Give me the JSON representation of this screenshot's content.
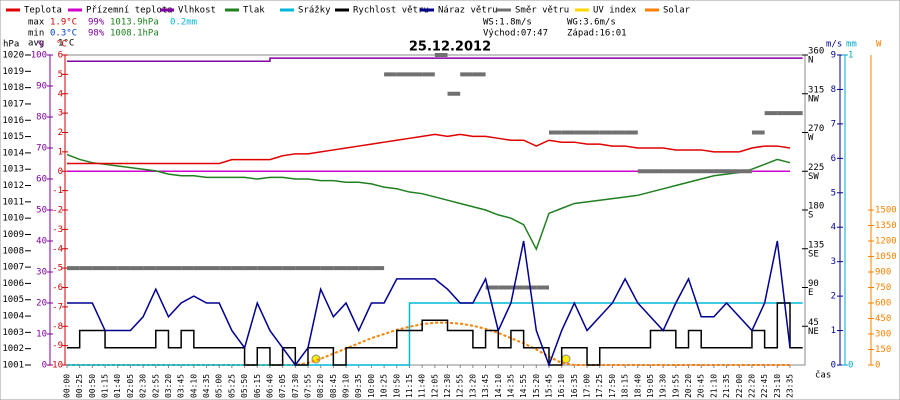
{
  "chart_data": {
    "type": "line",
    "title": "25.12.2012",
    "x_label": "čas",
    "stats": {
      "max_label": "max",
      "max_temp": "1.9°C",
      "max_hum": "99%",
      "max_press": "1013.9hPa",
      "rain": "0.2mm",
      "min_label": "min",
      "min_temp": "0.3°C",
      "min_hum": "98%",
      "min_press": "1008.1hPa",
      "avg_label": "avg",
      "avg_temp": "1°C",
      "ws": "WS:1.8m/s",
      "wg": "WG:3.6m/s",
      "sunrise": "Východ:07:47",
      "sunset": "Západ:16:01"
    },
    "categories": [
      "00:00",
      "00:25",
      "00:50",
      "01:15",
      "01:40",
      "02:05",
      "02:30",
      "02:55",
      "03:20",
      "03:45",
      "04:10",
      "04:35",
      "05:00",
      "05:25",
      "05:50",
      "06:15",
      "06:40",
      "07:05",
      "07:30",
      "07:55",
      "08:20",
      "08:45",
      "09:10",
      "09:35",
      "10:00",
      "10:25",
      "10:50",
      "11:15",
      "11:40",
      "12:05",
      "12:30",
      "12:55",
      "13:20",
      "13:45",
      "14:10",
      "14:35",
      "14:55",
      "15:20",
      "15:45",
      "16:10",
      "16:35",
      "17:00",
      "17:25",
      "17:50",
      "18:15",
      "18:40",
      "19:05",
      "19:30",
      "19:55",
      "20:20",
      "20:45",
      "21:10",
      "21:35",
      "22:00",
      "22:20",
      "22:45",
      "23:10",
      "23:35"
    ],
    "axes": {
      "pressure": {
        "label": "hPa",
        "color": "#000000",
        "ylim": [
          1001,
          1020
        ],
        "yticks": [
          1001,
          1002,
          1003,
          1004,
          1005,
          1006,
          1007,
          1008,
          1009,
          1010,
          1011,
          1012,
          1013,
          1014,
          1015,
          1016,
          1017,
          1018,
          1019,
          1020
        ]
      },
      "humidity": {
        "label": "%",
        "color": "#8000a0",
        "ylim": [
          0,
          100
        ],
        "yticks": [
          0,
          10,
          20,
          30,
          40,
          50,
          60,
          70,
          80,
          90,
          100
        ]
      },
      "temperature": {
        "label": "°C",
        "color": "#d00000",
        "ylim": [
          -10,
          6
        ],
        "yticks": [
          -10,
          -9,
          -8,
          -7,
          -6,
          -5,
          -4,
          -3,
          -2,
          -1,
          0,
          1,
          2,
          3,
          4,
          5,
          6
        ]
      },
      "direction": {
        "color": "#000000",
        "ylim": [
          0,
          360
        ],
        "yticks": [
          45,
          90,
          135,
          180,
          225,
          270,
          315,
          360
        ],
        "compass": [
          "NE",
          "E",
          "SE",
          "S",
          "SW",
          "W",
          "NW",
          "N"
        ]
      },
      "wind": {
        "label": "m/s",
        "color": "#000090",
        "ylim": [
          0,
          9
        ],
        "yticks": [
          0,
          1,
          2,
          3,
          4,
          5,
          6,
          7,
          8,
          9
        ]
      },
      "precip": {
        "label": "mm",
        "color": "#00a8c8",
        "ylim": [
          0,
          1
        ],
        "yticks": [
          0,
          1
        ]
      },
      "solar": {
        "label": "W",
        "color": "#ff8000",
        "ylim": [
          0,
          3000
        ],
        "yticks": [
          0,
          150,
          300,
          450,
          600,
          750,
          900,
          1050,
          1200,
          1350,
          1500
        ]
      }
    },
    "grid": false,
    "series": [
      {
        "name": "Teplota",
        "color": "#e00000",
        "axis": "temperature",
        "style": "line",
        "values": [
          0.4,
          0.4,
          0.4,
          0.4,
          0.4,
          0.4,
          0.4,
          0.4,
          0.4,
          0.4,
          0.4,
          0.4,
          0.4,
          0.6,
          0.6,
          0.6,
          0.6,
          0.8,
          0.9,
          0.9,
          1.0,
          1.1,
          1.2,
          1.3,
          1.4,
          1.5,
          1.6,
          1.7,
          1.8,
          1.9,
          1.8,
          1.9,
          1.8,
          1.8,
          1.7,
          1.6,
          1.6,
          1.3,
          1.6,
          1.5,
          1.5,
          1.4,
          1.4,
          1.3,
          1.3,
          1.2,
          1.2,
          1.2,
          1.1,
          1.1,
          1.1,
          1.0,
          1.0,
          1.0,
          1.2,
          1.3,
          1.3,
          1.2
        ]
      },
      {
        "name": "Přízemní teplota",
        "color": "#d000d0",
        "axis": "temperature",
        "style": "line",
        "values": [
          0,
          0,
          0,
          0,
          0,
          0,
          0,
          0,
          0,
          0,
          0,
          0,
          0,
          0,
          0,
          0,
          0,
          0,
          0,
          0,
          0,
          0,
          0,
          0,
          0,
          0,
          0,
          0,
          0,
          0,
          0,
          0,
          0,
          0,
          0,
          0,
          0,
          0,
          0,
          0,
          0,
          0,
          0,
          0,
          0,
          0,
          0,
          0,
          0,
          0,
          0,
          0,
          0,
          0,
          0,
          0,
          0,
          0
        ]
      },
      {
        "name": "Vlhkost",
        "color": "#8000a0",
        "axis": "humidity",
        "style": "step",
        "values": [
          98,
          98,
          98,
          98,
          98,
          98,
          98,
          98,
          98,
          98,
          98,
          98,
          98,
          98,
          98,
          98,
          99,
          99,
          99,
          99,
          99,
          99,
          99,
          99,
          99,
          99,
          99,
          99,
          99,
          99,
          99,
          99,
          99,
          99,
          99,
          99,
          99,
          99,
          99,
          99,
          99,
          99,
          99,
          99,
          99,
          99,
          99,
          99,
          99,
          99,
          99,
          99,
          99,
          99,
          99,
          99,
          99,
          99
        ]
      },
      {
        "name": "Tlak",
        "color": "#208020",
        "axis": "pressure",
        "style": "line",
        "values": [
          1013.9,
          1013.6,
          1013.4,
          1013.3,
          1013.2,
          1013.1,
          1013.0,
          1012.9,
          1012.7,
          1012.6,
          1012.6,
          1012.5,
          1012.5,
          1012.5,
          1012.5,
          1012.4,
          1012.5,
          1012.5,
          1012.4,
          1012.4,
          1012.3,
          1012.3,
          1012.2,
          1012.2,
          1012.1,
          1011.9,
          1011.8,
          1011.6,
          1011.5,
          1011.3,
          1011.1,
          1010.9,
          1010.7,
          1010.5,
          1010.2,
          1010.0,
          1009.6,
          1008.1,
          1010.3,
          1010.6,
          1010.9,
          1011.0,
          1011.1,
          1011.2,
          1011.3,
          1011.4,
          1011.6,
          1011.8,
          1012.0,
          1012.2,
          1012.4,
          1012.6,
          1012.7,
          1012.8,
          1013.0,
          1013.3,
          1013.6,
          1013.4
        ]
      },
      {
        "name": "Srážky",
        "color": "#00b8d8",
        "axis": "precip",
        "style": "step",
        "values": [
          0,
          0,
          0,
          0,
          0,
          0,
          0,
          0,
          0,
          0,
          0,
          0,
          0,
          0,
          0,
          0,
          0,
          0,
          0,
          0,
          0,
          0,
          0,
          0,
          0,
          0,
          0,
          0.2,
          0.2,
          0.2,
          0.2,
          0.2,
          0.2,
          0.2,
          0.2,
          0.2,
          0.2,
          0.2,
          0.2,
          0.2,
          0.2,
          0.2,
          0.2,
          0.2,
          0.2,
          0.2,
          0.2,
          0.2,
          0.2,
          0.2,
          0.2,
          0.2,
          0.2,
          0.2,
          0.2,
          0.2,
          0.2,
          0.2
        ]
      },
      {
        "name": "Rychlost větru",
        "color": "#000000",
        "axis": "wind",
        "style": "step",
        "values": [
          0.5,
          1,
          1,
          0.5,
          0.5,
          0.5,
          0.5,
          1,
          0.5,
          1,
          0.5,
          0.5,
          0.5,
          0.5,
          0,
          0.5,
          0,
          0.5,
          0,
          0.5,
          0.5,
          0,
          0.5,
          0.5,
          0.5,
          0.5,
          1,
          1,
          1.3,
          1.3,
          1,
          1,
          0.5,
          1,
          0.5,
          1,
          0.5,
          0.5,
          0,
          0.5,
          0.5,
          0,
          0.5,
          0.5,
          0.5,
          0.5,
          1,
          1,
          0.5,
          1,
          0.5,
          0.5,
          0.5,
          0.5,
          1,
          0.5,
          1.8,
          0.5
        ]
      },
      {
        "name": "Náraz větru",
        "color": "#000090",
        "axis": "wind",
        "style": "line",
        "values": [
          1.8,
          1.8,
          1.8,
          1,
          1,
          1,
          1.4,
          2.2,
          1.4,
          1.8,
          2,
          1.8,
          1.8,
          1,
          0.5,
          1.8,
          1,
          0.5,
          0,
          0.5,
          2.2,
          1.4,
          1.8,
          1,
          1.8,
          1.8,
          2.5,
          2.5,
          2.5,
          2.5,
          2.2,
          1.8,
          1.8,
          2.5,
          1,
          1.8,
          3.6,
          1,
          0,
          1,
          1.8,
          1,
          1.4,
          1.8,
          2.5,
          1.8,
          1.4,
          1,
          1.8,
          2.5,
          1.4,
          1.4,
          1.8,
          1.4,
          1,
          1.8,
          3.6,
          0.5
        ]
      },
      {
        "name": "Směr větru",
        "color": "#707070",
        "axis": "direction",
        "style": "segments",
        "values": [
          112.5,
          112.5,
          112.5,
          112.5,
          112.5,
          112.5,
          112.5,
          112.5,
          112.5,
          112.5,
          112.5,
          112.5,
          112.5,
          112.5,
          112.5,
          112.5,
          112.5,
          112.5,
          112.5,
          112.5,
          112.5,
          112.5,
          112.5,
          112.5,
          112.5,
          337.5,
          337.5,
          337.5,
          337.5,
          360,
          315,
          337.5,
          337.5,
          90,
          90,
          90,
          90,
          90,
          270,
          270,
          270,
          270,
          270,
          270,
          270,
          225,
          225,
          225,
          225,
          225,
          225,
          225,
          225,
          225,
          270,
          292.5,
          292.5,
          292.5
        ]
      },
      {
        "name": "UV index",
        "color": "#ffd700",
        "axis": "solar",
        "style": "line",
        "values": [
          null,
          null,
          null,
          null,
          null,
          null,
          null,
          null,
          null,
          null,
          null,
          null,
          null,
          null,
          null,
          null,
          null,
          null,
          null,
          null,
          null,
          null,
          null,
          null,
          null,
          null,
          null,
          null,
          null,
          null,
          null,
          null,
          null,
          null,
          null,
          null,
          null,
          null,
          null,
          null,
          null,
          null,
          null,
          null,
          null,
          null,
          null,
          null,
          null,
          null,
          null,
          null,
          null,
          null,
          null,
          null,
          null,
          null
        ]
      },
      {
        "name": "Solar",
        "color": "#ff8000",
        "axis": "solar",
        "style": "dashed",
        "values": [
          0,
          0,
          0,
          0,
          0,
          0,
          0,
          0,
          0,
          0,
          0,
          0,
          0,
          0,
          0,
          0,
          0,
          0,
          0,
          20,
          60,
          110,
          160,
          210,
          260,
          300,
          340,
          370,
          395,
          410,
          410,
          400,
          380,
          350,
          310,
          260,
          210,
          150,
          80,
          20,
          0,
          0,
          0,
          0,
          0,
          0,
          0,
          0,
          0,
          0,
          0,
          0,
          0,
          0,
          0,
          0,
          0,
          0
        ]
      }
    ]
  }
}
